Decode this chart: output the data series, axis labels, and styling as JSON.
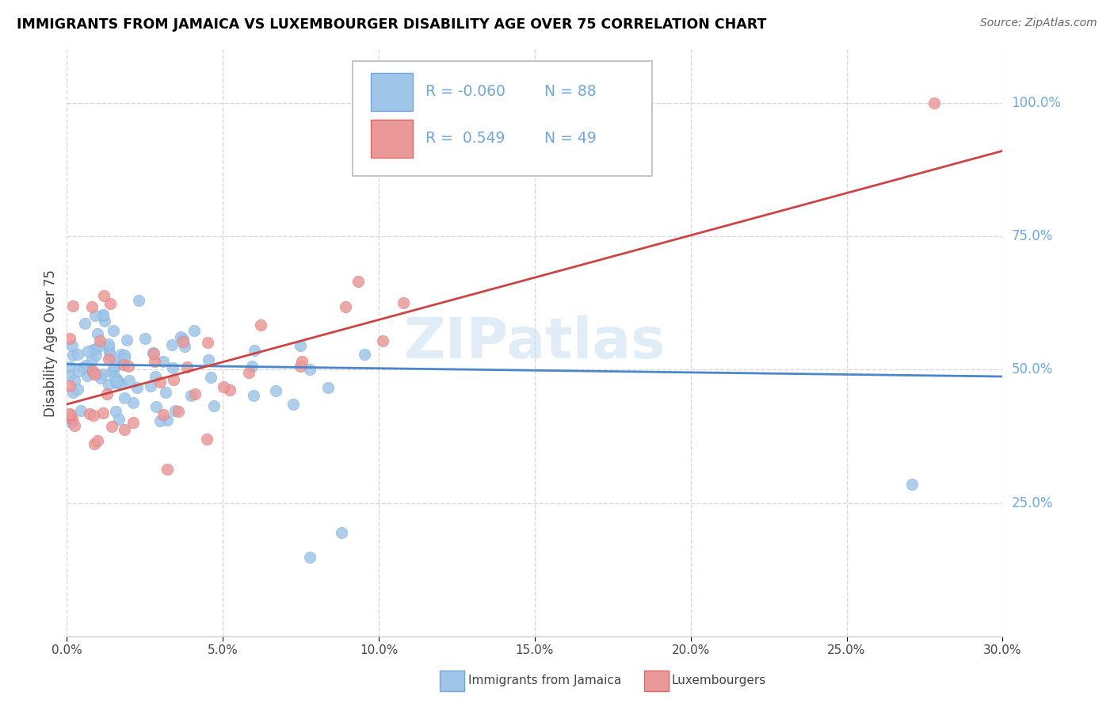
{
  "title": "IMMIGRANTS FROM JAMAICA VS LUXEMBOURGER DISABILITY AGE OVER 75 CORRELATION CHART",
  "source": "Source: ZipAtlas.com",
  "ylabel_label": "Disability Age Over 75",
  "xlim": [
    0.0,
    0.3
  ],
  "ylim": [
    0.0,
    1.1
  ],
  "xtick_values": [
    0.0,
    0.05,
    0.1,
    0.15,
    0.2,
    0.25,
    0.3
  ],
  "xtick_labels": [
    "0.0%",
    "5.0%",
    "10.0%",
    "15.0%",
    "20.0%",
    "25.0%",
    "30.0%"
  ],
  "ytick_values": [
    0.25,
    0.5,
    0.75,
    1.0
  ],
  "ytick_labels": [
    "25.0%",
    "50.0%",
    "75.0%",
    "100.0%"
  ],
  "blue_fill": "#9fc5e8",
  "blue_edge": "#6fa8dc",
  "pink_fill": "#ea9999",
  "pink_edge": "#e06666",
  "blue_line_color": "#4a86c8",
  "pink_line_color": "#cc4444",
  "label_color": "#6fa8dc",
  "r_blue": "-0.060",
  "n_blue": "88",
  "r_pink": "0.549",
  "n_pink": "49",
  "blue_line_x0": 0.0,
  "blue_line_x1": 0.3,
  "blue_line_y0": 0.51,
  "blue_line_y1": 0.487,
  "pink_line_x0": 0.0,
  "pink_line_x1": 0.3,
  "pink_line_y0": 0.435,
  "pink_line_y1": 0.91,
  "watermark": "ZIPatlas",
  "background_color": "#ffffff",
  "grid_color": "#d9d9d9",
  "title_color": "#000000",
  "source_color": "#666666",
  "legend_label_blue": "Immigrants from Jamaica",
  "legend_label_pink": "Luxembourgers"
}
